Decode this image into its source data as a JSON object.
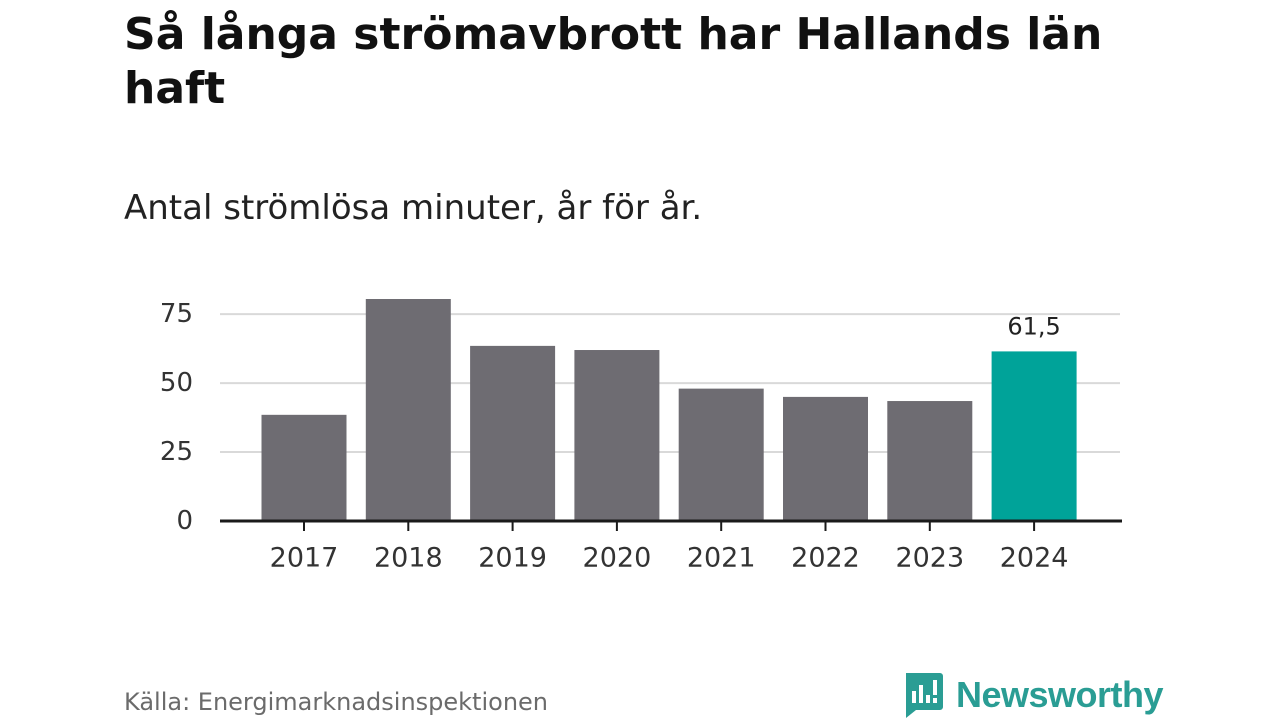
{
  "header": {
    "title": "Så långa strömavbrott har Hallands län haft",
    "subtitle": "Antal strömlösa minuter, år för år."
  },
  "footer": {
    "source": "Källa: Energimarknadsinspektionen",
    "brand": "Newsworthy"
  },
  "colors": {
    "bar": "#6e6c72",
    "highlight": "#00a399",
    "grid": "#d9d9d9",
    "axis": "#1a1a1a",
    "brand": "#2a9d94"
  },
  "chart_data": {
    "type": "bar",
    "categories": [
      "2017",
      "2018",
      "2019",
      "2020",
      "2021",
      "2022",
      "2023",
      "2024"
    ],
    "values": [
      38.5,
      80.5,
      63.5,
      62,
      48,
      45,
      43.5,
      61.5
    ],
    "highlight_index": 7,
    "data_labels": [
      {
        "index": 7,
        "text": "61,5"
      }
    ],
    "yticks": [
      0,
      25,
      50,
      75
    ],
    "ylim": [
      0,
      80.5
    ],
    "grid": true,
    "xlabel": "",
    "ylabel": ""
  }
}
